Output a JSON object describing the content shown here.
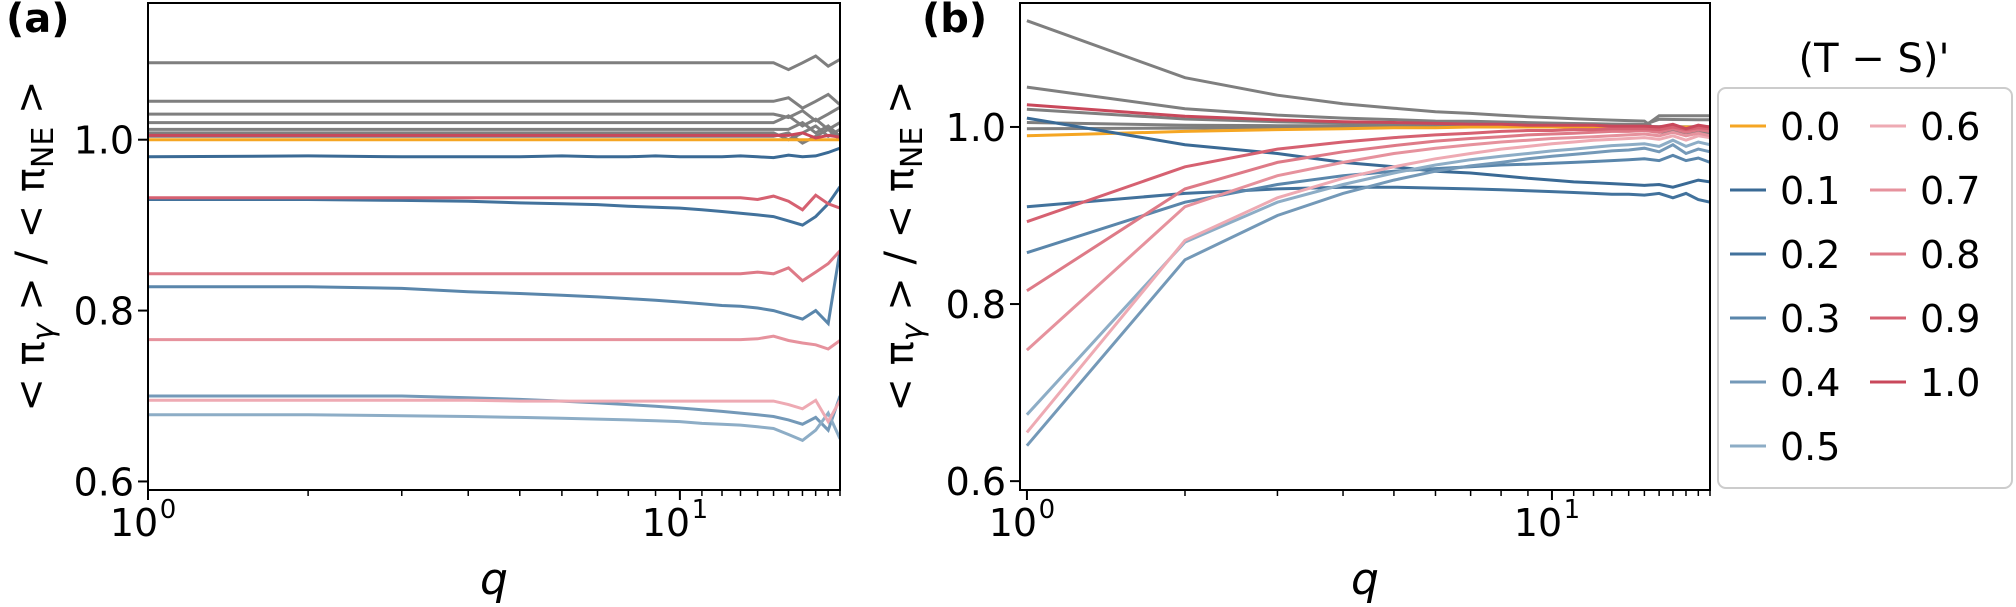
{
  "chart_data": [
    {
      "panel_label": "(a)",
      "type": "line",
      "xscale": "log",
      "xlim": [
        1,
        20
      ],
      "ylim": [
        0.59,
        1.16
      ],
      "xlabel": "q",
      "ylabel": "< π_γ > / < π_NE >",
      "x_ticks": [
        "10^0",
        "10^1"
      ],
      "y_ticks": [
        "0.6",
        "0.8",
        "1.0"
      ],
      "series": [
        {
          "label": "0.0",
          "values": [
            1.0,
            1.0,
            1.0,
            1.0,
            1.0,
            1.0,
            1.0,
            1.0,
            1.0,
            1.0,
            1.0,
            1.0,
            1.0,
            1.0,
            1.0,
            1.0,
            1.0,
            1.0,
            1.0,
            1.0
          ]
        },
        {
          "label": "0.1",
          "values": [
            0.98,
            0.981,
            0.98,
            0.98,
            0.98,
            0.981,
            0.98,
            0.98,
            0.981,
            0.98,
            0.98,
            0.98,
            0.981,
            0.98,
            0.979,
            0.982,
            0.98,
            0.981,
            0.985,
            0.99
          ]
        },
        {
          "label": "0.2",
          "values": [
            0.93,
            0.93,
            0.929,
            0.928,
            0.926,
            0.925,
            0.924,
            0.922,
            0.921,
            0.92,
            0.918,
            0.916,
            0.914,
            0.912,
            0.91,
            0.905,
            0.9,
            0.91,
            0.925,
            0.945
          ]
        },
        {
          "label": "0.3",
          "values": [
            0.828,
            0.828,
            0.826,
            0.822,
            0.82,
            0.818,
            0.816,
            0.814,
            0.812,
            0.81,
            0.808,
            0.806,
            0.805,
            0.803,
            0.8,
            0.795,
            0.79,
            0.8,
            0.785,
            0.87
          ]
        },
        {
          "label": "0.4",
          "values": [
            0.7,
            0.7,
            0.7,
            0.698,
            0.696,
            0.694,
            0.692,
            0.69,
            0.688,
            0.686,
            0.684,
            0.682,
            0.68,
            0.678,
            0.676,
            0.672,
            0.667,
            0.675,
            0.66,
            0.7
          ]
        },
        {
          "label": "0.5",
          "values": [
            0.678,
            0.678,
            0.677,
            0.676,
            0.675,
            0.674,
            0.673,
            0.672,
            0.671,
            0.67,
            0.668,
            0.667,
            0.666,
            0.664,
            0.662,
            0.655,
            0.648,
            0.66,
            0.68,
            0.65
          ]
        },
        {
          "label": "0.6",
          "values": [
            0.695,
            0.695,
            0.695,
            0.695,
            0.694,
            0.694,
            0.694,
            0.694,
            0.694,
            0.694,
            0.694,
            0.694,
            0.694,
            0.694,
            0.694,
            0.69,
            0.685,
            0.695,
            0.67,
            0.695
          ]
        },
        {
          "label": "0.7",
          "values": [
            0.766,
            0.766,
            0.766,
            0.766,
            0.766,
            0.766,
            0.766,
            0.766,
            0.766,
            0.766,
            0.766,
            0.766,
            0.766,
            0.767,
            0.77,
            0.765,
            0.762,
            0.76,
            0.755,
            0.765
          ]
        },
        {
          "label": "0.8",
          "values": [
            0.843,
            0.843,
            0.843,
            0.843,
            0.843,
            0.843,
            0.843,
            0.843,
            0.843,
            0.843,
            0.843,
            0.843,
            0.843,
            0.845,
            0.843,
            0.85,
            0.835,
            0.845,
            0.855,
            0.87
          ]
        },
        {
          "label": "0.9",
          "values": [
            0.932,
            0.932,
            0.932,
            0.932,
            0.932,
            0.932,
            0.932,
            0.932,
            0.932,
            0.932,
            0.932,
            0.932,
            0.932,
            0.93,
            0.934,
            0.928,
            0.918,
            0.935,
            0.925,
            0.92
          ]
        },
        {
          "label": "1.0",
          "values": [
            1.005,
            1.005,
            1.005,
            1.005,
            1.005,
            1.005,
            1.005,
            1.005,
            1.005,
            1.005,
            1.005,
            1.005,
            1.005,
            1.005,
            1.005,
            1.005,
            1.008,
            1.002,
            1.005,
            1.003
          ]
        }
      ]
    },
    {
      "panel_label": "(b)",
      "type": "line",
      "xscale": "log",
      "xlim": [
        0.97,
        20
      ],
      "ylim": [
        0.59,
        1.14
      ],
      "xlabel": "q",
      "ylabel": "< π_γ > / < π_NE >",
      "x_ticks": [
        "10^0",
        "10^1"
      ],
      "y_ticks": [
        "0.6",
        "0.8",
        "1.0"
      ],
      "legend_title": "(T − S)'",
      "legend_position": "right",
      "series": [
        {
          "label": "0.0",
          "values": [
            0.99,
            0.995,
            0.997,
            0.998,
            0.999,
            0.999,
            1.0,
            1.0,
            1.0,
            1.0,
            1.0,
            1.0,
            1.0,
            1.0,
            1.0,
            1.0,
            1.0,
            1.0,
            1.0,
            1.0
          ]
        },
        {
          "label": "0.1",
          "values": [
            1.01,
            0.98,
            0.97,
            0.96,
            0.955,
            0.95,
            0.948,
            0.945,
            0.942,
            0.94,
            0.938,
            0.937,
            0.936,
            0.935,
            0.934,
            0.935,
            0.932,
            0.936,
            0.94,
            0.938
          ]
        },
        {
          "label": "0.2",
          "values": [
            0.91,
            0.925,
            0.93,
            0.932,
            0.932,
            0.931,
            0.93,
            0.929,
            0.928,
            0.927,
            0.926,
            0.925,
            0.924,
            0.924,
            0.923,
            0.925,
            0.92,
            0.925,
            0.918,
            0.915
          ]
        },
        {
          "label": "0.3",
          "values": [
            0.858,
            0.915,
            0.935,
            0.945,
            0.95,
            0.953,
            0.955,
            0.957,
            0.958,
            0.959,
            0.96,
            0.961,
            0.962,
            0.963,
            0.964,
            0.962,
            0.968,
            0.962,
            0.965,
            0.96
          ]
        },
        {
          "label": "0.4",
          "values": [
            0.64,
            0.85,
            0.9,
            0.925,
            0.94,
            0.95,
            0.956,
            0.96,
            0.964,
            0.967,
            0.969,
            0.971,
            0.973,
            0.974,
            0.976,
            0.972,
            0.98,
            0.97,
            0.975,
            0.972
          ]
        },
        {
          "label": "0.5",
          "values": [
            0.675,
            0.87,
            0.915,
            0.935,
            0.948,
            0.957,
            0.963,
            0.967,
            0.97,
            0.973,
            0.975,
            0.977,
            0.979,
            0.98,
            0.981,
            0.978,
            0.985,
            0.978,
            0.983,
            0.98
          ]
        },
        {
          "label": "0.6",
          "values": [
            0.655,
            0.872,
            0.92,
            0.942,
            0.955,
            0.964,
            0.97,
            0.975,
            0.978,
            0.981,
            0.983,
            0.985,
            0.986,
            0.987,
            0.988,
            0.986,
            0.99,
            0.985,
            0.99,
            0.988
          ]
        },
        {
          "label": "0.7",
          "values": [
            0.748,
            0.91,
            0.945,
            0.96,
            0.97,
            0.976,
            0.98,
            0.983,
            0.985,
            0.987,
            0.988,
            0.989,
            0.99,
            0.991,
            0.992,
            0.99,
            0.994,
            0.99,
            0.993,
            0.99
          ]
        },
        {
          "label": "0.8",
          "values": [
            0.815,
            0.93,
            0.96,
            0.972,
            0.979,
            0.984,
            0.987,
            0.989,
            0.991,
            0.992,
            0.993,
            0.994,
            0.995,
            0.995,
            0.996,
            0.994,
            0.998,
            0.994,
            0.997,
            0.995
          ]
        },
        {
          "label": "0.9",
          "values": [
            0.893,
            0.955,
            0.975,
            0.983,
            0.988,
            0.991,
            0.993,
            0.995,
            0.996,
            0.996,
            0.997,
            0.997,
            0.998,
            0.998,
            0.998,
            0.997,
            1.0,
            0.997,
            0.999,
            0.998
          ]
        },
        {
          "label": "1.0",
          "values": [
            1.025,
            1.012,
            1.008,
            1.006,
            1.005,
            1.004,
            1.003,
            1.003,
            1.002,
            1.002,
            1.002,
            1.002,
            1.001,
            1.001,
            1.001,
            1.0,
            1.003,
            0.998,
            1.002,
            1.0
          ]
        }
      ]
    }
  ],
  "legend": {
    "title": "(T − S)'",
    "entries": [
      {
        "label": "0.0",
        "color": "#f5a623"
      },
      {
        "label": "0.1",
        "color": "#3a6a95"
      },
      {
        "label": "0.2",
        "color": "#42729c"
      },
      {
        "label": "0.3",
        "color": "#5a86ab"
      },
      {
        "label": "0.4",
        "color": "#7499b8"
      },
      {
        "label": "0.5",
        "color": "#8dadc6"
      },
      {
        "label": "0.6",
        "color": "#eeaab3"
      },
      {
        "label": "0.7",
        "color": "#e6929d"
      },
      {
        "label": "0.8",
        "color": "#de7a87"
      },
      {
        "label": "0.9",
        "color": "#d66171"
      },
      {
        "label": "1.0",
        "color": "#c9485b"
      }
    ]
  },
  "colors": {
    "grey_series": "#7f7f7f",
    "axes": "#000000",
    "legend_border": "#cccccc"
  }
}
